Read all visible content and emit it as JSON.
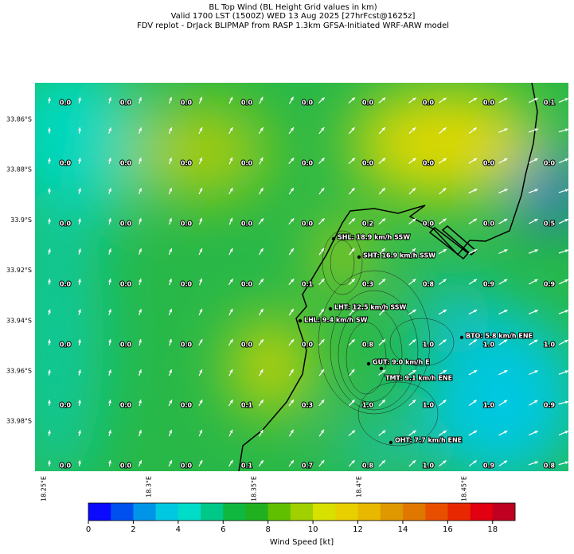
{
  "title": {
    "lines": [
      "BL Top Wind (BL Height Grid values in km)",
      "Valid 1700 LST (1500Z) WED 13 Aug 2025 [27hrFcst@1625z]",
      "FDV replot - DrJack BLIPMAP from RASP 1.3km GFSA-Initiated WRF-ARW model"
    ]
  },
  "map": {
    "lat_labels": [
      "33.86°S",
      "33.88°S",
      "33.9°S",
      "33.92°S",
      "33.94°S",
      "33.96°S",
      "33.98°S"
    ],
    "lon_labels": [
      "18.25°E",
      "18.3°E",
      "18.35°E",
      "18.4°E",
      "18.45°E"
    ],
    "grid_values": [
      [
        "0.0",
        "0.0",
        "0.0",
        "0.0",
        "0.0",
        "0.0",
        "0.0",
        "0.0",
        "0.1"
      ],
      [
        "0.0",
        "0.0",
        "0.0",
        "0.0",
        "0.0",
        "0.0",
        "0.0",
        "0.0",
        "0.0"
      ],
      [
        "0.0",
        "0.0",
        "0.0",
        "0.0",
        "0.0",
        "0.2",
        "0.0",
        "0.0",
        "0.5"
      ],
      [
        "0.0",
        "0.0",
        "0.0",
        "0.0",
        "0.1",
        "0.3",
        "0.8",
        "0.9",
        "0.9"
      ],
      [
        "0.0",
        "0.0",
        "0.0",
        "0.0",
        "0.0",
        "0.8",
        "1.0",
        "1.0",
        "1.0"
      ],
      [
        "0.0",
        "0.0",
        "0.0",
        "0.1",
        "0.3",
        "1.0",
        "1.0",
        "1.0",
        "0.9"
      ],
      [
        "0.0",
        "0.0",
        "0.0",
        "0.1",
        "0.7",
        "0.8",
        "1.0",
        "0.9",
        "0.8"
      ]
    ],
    "stations": [
      "SHL: 18.9 km/h SSW",
      "SHT: 16.9 km/h SSW",
      "LHT: 12.5 km/h SSW",
      "LHL: 9.4 km/h SW",
      "BTO: 5.8 km/h ENE",
      "GUT: 9.0 km/h E",
      "TMT: 9.1 km/h ENE",
      "OHT: 7.7 km/h ENE"
    ]
  },
  "colorbar": {
    "label": "Wind Speed [kt]",
    "lim": [
      0,
      19
    ],
    "ticks": [
      0,
      2,
      4,
      6,
      8,
      10,
      12,
      14,
      16,
      18
    ],
    "colors": [
      "#0a0aff",
      "#0050f0",
      "#0095e8",
      "#00c8e0",
      "#00dcc8",
      "#00c888",
      "#10b840",
      "#20b020",
      "#60c000",
      "#a0d000",
      "#d8e000",
      "#e8d000",
      "#e8b800",
      "#e09800",
      "#e07800",
      "#e85000",
      "#e82800",
      "#e00010",
      "#c00020"
    ]
  }
}
